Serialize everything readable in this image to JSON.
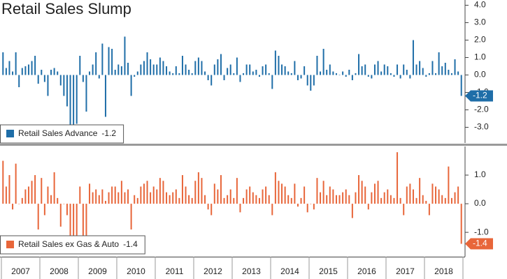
{
  "chart_data": [
    {
      "type": "bar",
      "title": "Retail Sales Slump",
      "series": [
        {
          "name": "Retail Sales Advance",
          "color": "#1f6ea8",
          "values": [
            1.3,
            0.4,
            0.8,
            0.2,
            1.3,
            -0.7,
            0.4,
            0.5,
            0.6,
            0.8,
            1.1,
            -0.5,
            0.3,
            -0.4,
            -1.2,
            0.3,
            0.4,
            0.2,
            -0.6,
            -1.2,
            -1.8,
            -3.8,
            -3.2,
            -2.8,
            1.1,
            -0.4,
            -2.1,
            0.2,
            0.6,
            1.3,
            -0.2,
            1.8,
            -2.4,
            1.6,
            1.5,
            0.3,
            0.6,
            0.5,
            2.2,
            0.7,
            -1.2,
            -0.1,
            0.2,
            0.6,
            0.8,
            1.3,
            0.9,
            0.6,
            0.6,
            1.0,
            0.8,
            0.5,
            0.2,
            0.1,
            0.5,
            0.1,
            1.1,
            0.6,
            0.3,
            0.1,
            0.8,
            1.0,
            0.8,
            0.2,
            -0.3,
            -0.6,
            0.6,
            0.9,
            1.2,
            -0.3,
            0.4,
            0.6,
            0.1,
            1.0,
            -0.4,
            0.1,
            0.6,
            0.6,
            0.2,
            0.3,
            -0.1,
            0.5,
            0.6,
            0.1,
            -0.8,
            1.4,
            1.1,
            0.6,
            0.5,
            0.2,
            0.1,
            0.8,
            -0.3,
            -0.2,
            0.5,
            -0.6,
            -0.9,
            -0.6,
            1.1,
            0.2,
            1.5,
            0.3,
            0.6,
            0.2,
            0.1,
            0.0,
            0.2,
            -0.1,
            0.3,
            -0.3,
            0.1,
            1.2,
            0.5,
            0.6,
            -0.1,
            -0.2,
            0.6,
            0.8,
            0.2,
            0.6,
            0.5,
            0.1,
            -0.1,
            0.6,
            -0.2,
            0.6,
            0.3,
            -0.2,
            2.0,
            0.6,
            0.8,
            0.4,
            -0.1,
            0.1,
            0.8,
            0.1,
            1.3,
            0.5,
            0.7,
            0.3,
            0.1,
            0.9,
            0.2,
            -1.2
          ]
        }
      ],
      "ylim": [
        -3.9,
        4.3
      ],
      "yticks": [
        {
          "value": 4,
          "label": "4.0"
        },
        {
          "value": 3,
          "label": "3.0"
        },
        {
          "value": 2,
          "label": "2.0"
        },
        {
          "value": 1,
          "label": "1.0"
        },
        {
          "value": 0,
          "label": "0.0"
        },
        {
          "value": -1,
          "label": "-1.0"
        },
        {
          "value": -2,
          "label": "-2.0"
        },
        {
          "value": -3,
          "label": "-3.0"
        }
      ],
      "axis_side": "right"
    },
    {
      "type": "bar",
      "categories": [
        "2007",
        null,
        null,
        null,
        null,
        null,
        null,
        null,
        null,
        null,
        null,
        null,
        "2008",
        null,
        null,
        null,
        null,
        null,
        null,
        null,
        null,
        null,
        null,
        null,
        "2009",
        null,
        null,
        null,
        null,
        null,
        null,
        null,
        null,
        null,
        null,
        null,
        "2010",
        null,
        null,
        null,
        null,
        null,
        null,
        null,
        null,
        null,
        null,
        null,
        "2011",
        null,
        null,
        null,
        null,
        null,
        null,
        null,
        null,
        null,
        null,
        null,
        "2012",
        null,
        null,
        null,
        null,
        null,
        null,
        null,
        null,
        null,
        null,
        null,
        "2013",
        null,
        null,
        null,
        null,
        null,
        null,
        null,
        null,
        null,
        null,
        null,
        "2014",
        null,
        null,
        null,
        null,
        null,
        null,
        null,
        null,
        null,
        null,
        null,
        "2015",
        null,
        null,
        null,
        null,
        null,
        null,
        null,
        null,
        null,
        null,
        null,
        "2016",
        null,
        null,
        null,
        null,
        null,
        null,
        null,
        null,
        null,
        null,
        null,
        "2017",
        null,
        null,
        null,
        null,
        null,
        null,
        null,
        null,
        null,
        null,
        null,
        "2018",
        null,
        null,
        null,
        null,
        null,
        null,
        null,
        null,
        null,
        null,
        null
      ],
      "series": [
        {
          "name": "Retail Sales ex Gas & Auto",
          "color": "#e8663a",
          "values": [
            1.5,
            0.6,
            1.0,
            -0.2,
            1.4,
            0.0,
            0.2,
            0.5,
            0.6,
            0.8,
            1.0,
            -0.9,
            0.9,
            -0.4,
            0.6,
            0.3,
            1.1,
            0.2,
            -0.8,
            0.0,
            -0.4,
            -1.2,
            -1.2,
            -1.3,
            0.6,
            -1.3,
            -1.2,
            0.7,
            0.4,
            0.5,
            0.3,
            0.5,
            0.1,
            0.4,
            0.6,
            0.6,
            0.4,
            0.8,
            0.4,
            0.5,
            -0.9,
            0.3,
            0.2,
            0.6,
            0.7,
            0.8,
            0.4,
            0.6,
            0.5,
            0.9,
            0.8,
            0.4,
            0.3,
            0.4,
            0.5,
            0.2,
            1.0,
            0.6,
            0.3,
            0.2,
            0.8,
            1.1,
            0.9,
            0.3,
            -0.2,
            -0.4,
            0.7,
            0.5,
            1.0,
            0.2,
            0.3,
            0.5,
            0.2,
            0.9,
            -0.3,
            0.2,
            0.5,
            0.6,
            0.4,
            0.3,
            0.2,
            0.5,
            0.6,
            0.3,
            -0.4,
            1.1,
            0.8,
            0.7,
            0.6,
            0.3,
            0.2,
            0.7,
            -0.1,
            0.2,
            0.6,
            -0.3,
            0.0,
            -0.2,
            0.9,
            0.4,
            0.8,
            0.3,
            0.6,
            0.5,
            0.3,
            0.3,
            0.4,
            0.5,
            0.3,
            -0.5,
            0.4,
            1.0,
            0.8,
            0.6,
            -0.2,
            0.4,
            0.7,
            0.8,
            0.2,
            0.4,
            0.5,
            0.3,
            0.2,
            1.8,
            0.2,
            -0.4,
            0.6,
            0.7,
            0.5,
            0.2,
            0.9,
            0.3,
            0.1,
            -0.4,
            0.7,
            0.6,
            0.5,
            0.3,
            0.2,
            1.3,
            0.2,
            0.4,
            0.6,
            -1.4
          ]
        }
      ],
      "ylim": [
        -1.85,
        2.0
      ],
      "yticks": [
        {
          "value": 1,
          "label": "1.0"
        },
        {
          "value": 0,
          "label": "0.0"
        },
        {
          "value": -1,
          "label": "-1.0"
        }
      ],
      "axis_side": "right"
    }
  ]
}
